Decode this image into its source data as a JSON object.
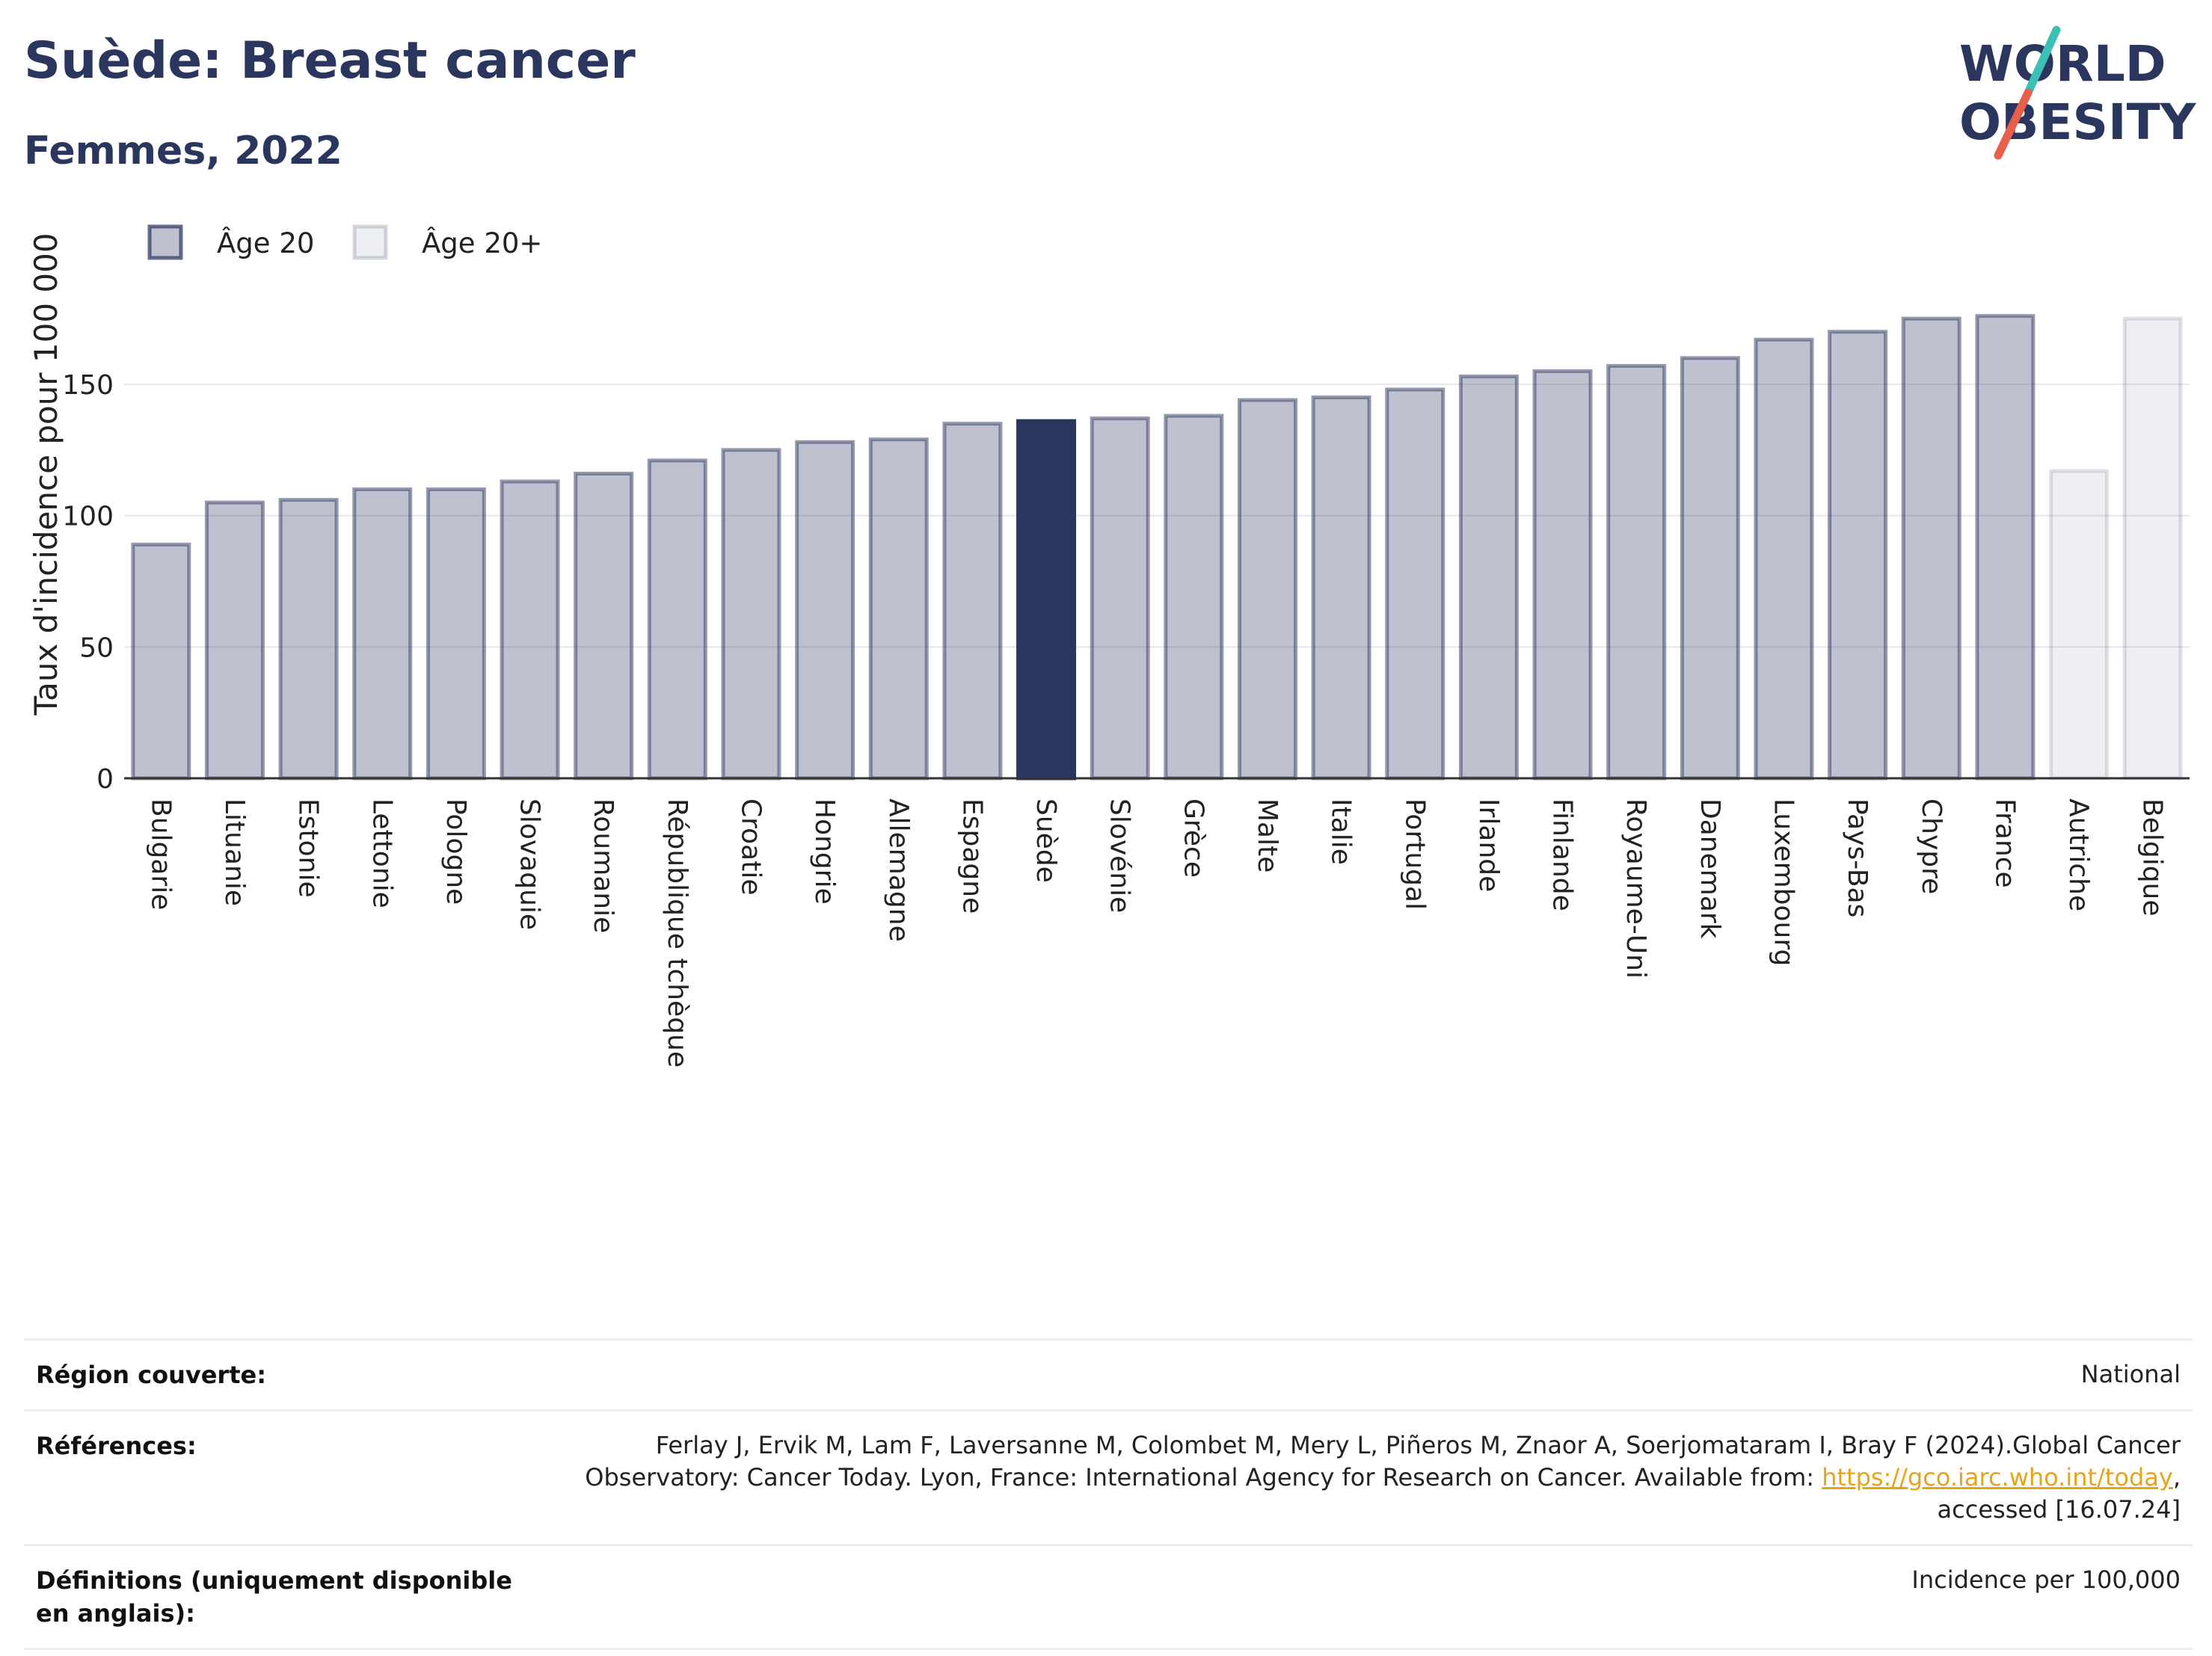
{
  "header": {
    "title": "Suède: Breast cancer",
    "subtitle": "Femmes, 2022"
  },
  "logo": {
    "line1": "WORLD",
    "line2": "OBESITY",
    "colors": {
      "text": "#2b365e",
      "slash_top": "#3cbfb4",
      "slash_bottom": "#e8604c"
    }
  },
  "chart_data": {
    "type": "bar",
    "title": "",
    "xlabel": "",
    "ylabel": "Taux d'incidence pour 100 000",
    "ylim": [
      0,
      185
    ],
    "yticks": [
      0,
      50,
      100,
      150
    ],
    "grid": true,
    "legend_position": "top-left",
    "legend": [
      {
        "name": "Âge 20",
        "color": "#2b365e",
        "opacity": 0.3
      },
      {
        "name": "Âge 20+",
        "color": "#2b365e",
        "opacity": 0.08
      }
    ],
    "highlight": "Suède",
    "highlight_color": "#2b365e",
    "categories": [
      "Bulgarie",
      "Lituanie",
      "Estonie",
      "Lettonie",
      "Pologne",
      "Slovaquie",
      "Roumanie",
      "République tchèque",
      "Croatie",
      "Hongrie",
      "Allemagne",
      "Espagne",
      "Suède",
      "Slovénie",
      "Grèce",
      "Malte",
      "Italie",
      "Portugal",
      "Irlande",
      "Finlande",
      "Royaume-Uni",
      "Danemark",
      "Luxembourg",
      "Pays-Bas",
      "Chypre",
      "France",
      "Autriche",
      "Belgique"
    ],
    "series": [
      {
        "name": "Âge 20",
        "values": [
          89,
          105,
          106,
          110,
          110,
          113,
          116,
          121,
          125,
          128,
          129,
          135,
          136,
          137,
          138,
          144,
          145,
          148,
          153,
          155,
          157,
          160,
          167,
          170,
          175,
          176,
          null,
          null
        ]
      },
      {
        "name": "Âge 20+",
        "values": [
          null,
          null,
          null,
          null,
          null,
          null,
          null,
          null,
          null,
          null,
          null,
          null,
          null,
          null,
          null,
          null,
          null,
          null,
          null,
          null,
          null,
          null,
          null,
          null,
          null,
          null,
          117,
          175
        ]
      }
    ]
  },
  "meta": {
    "region_label": "Région couverte:",
    "region_value": "National",
    "references_label": "Références:",
    "references_text": "Ferlay J, Ervik M, Lam F, Laversanne M, Colombet M, Mery L, Piñeros M, Znaor A, Soerjomataram I, Bray F (2024).Global Cancer Observatory: Cancer Today. Lyon, France: International Agency for Research on Cancer. Available from:",
    "references_link": "https://gco.iarc.who.int/today",
    "references_suffix": ", accessed [16.07.24]",
    "definitions_label": "Définitions (uniquement disponible en anglais):",
    "definitions_value": "Incidence per 100,000"
  }
}
